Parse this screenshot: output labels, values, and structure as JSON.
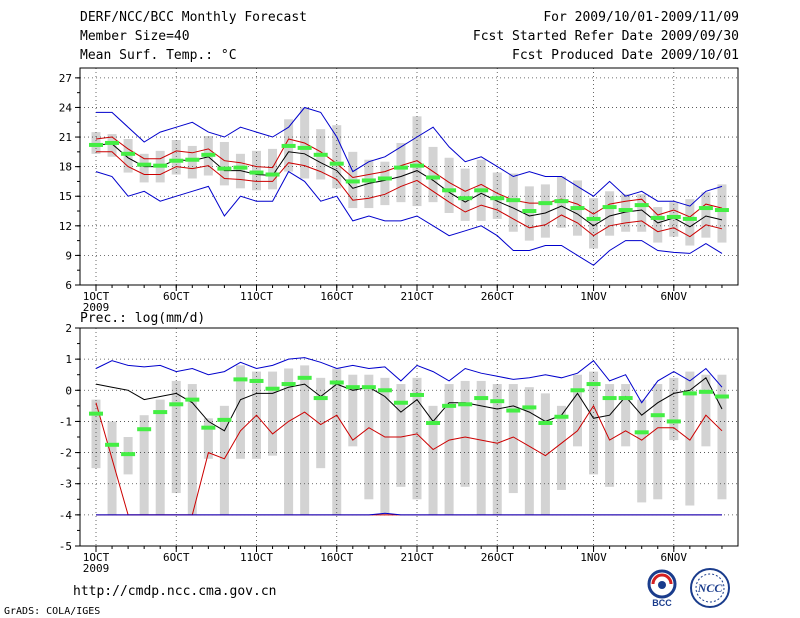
{
  "header": {
    "title": "DERF/NCC/BCC Monthly Forecast",
    "member_size": "Member Size=40",
    "variable": "Mean Surf. Temp.: °C",
    "period": "For 2009/10/01-2009/11/09",
    "started": "Fcst Started Refer Date 2009/09/30",
    "produced": "Fcst Produced Date 2009/10/01"
  },
  "footer": {
    "url": "http://cmdp.ncc.cma.gov.cn",
    "credit": "GrADS: COLA/IGES",
    "logo_bcc_text": "BCC",
    "logo_ncc_text": "NCC"
  },
  "chart_data": [
    {
      "type": "line",
      "name": "temperature",
      "title": "Mean Surf. Temp.: °C",
      "x_tick_labels": [
        "1OCT",
        "6OCT",
        "11OCT",
        "16OCT",
        "21OCT",
        "26OCT",
        "1NOV",
        "6NOV"
      ],
      "x_tick_days": [
        1,
        6,
        11,
        16,
        21,
        26,
        32,
        37
      ],
      "x_sub_label": "2009",
      "ylim": [
        6,
        28
      ],
      "y_ticks": [
        6,
        9,
        12,
        15,
        18,
        21,
        24,
        27
      ],
      "days": [
        1,
        2,
        3,
        4,
        5,
        6,
        7,
        8,
        9,
        10,
        11,
        12,
        13,
        14,
        15,
        16,
        17,
        18,
        19,
        20,
        21,
        22,
        23,
        24,
        25,
        26,
        27,
        28,
        29,
        30,
        31,
        32,
        33,
        34,
        35,
        36,
        37,
        38,
        39,
        40
      ],
      "series": [
        {
          "name": "max",
          "color": "#0000cc",
          "values": [
            23.5,
            23.5,
            22,
            20.5,
            21.5,
            22,
            22.5,
            21.5,
            21,
            22,
            21.5,
            21,
            22,
            24,
            23.5,
            21,
            17.5,
            18.5,
            19,
            20,
            21,
            22,
            20,
            18.5,
            19,
            18,
            17,
            17.5,
            17,
            17,
            16,
            15,
            16.5,
            15,
            15.5,
            14.5,
            14.5,
            14,
            15.5,
            16
          ]
        },
        {
          "name": "p75",
          "color": "#cc0000",
          "values": [
            20.8,
            21,
            19.8,
            18.8,
            18.8,
            19.6,
            19.4,
            19.8,
            18.6,
            18.4,
            18,
            17.9,
            20.8,
            20.4,
            19.5,
            18.3,
            16.9,
            17.2,
            17.5,
            18.1,
            18.6,
            17.5,
            16.4,
            15.5,
            16.2,
            15.3,
            14.6,
            14.3,
            14.3,
            14.7,
            14.2,
            13.2,
            14.2,
            14.5,
            14.7,
            13.1,
            13.6,
            12.9,
            14.2,
            13.8
          ]
        },
        {
          "name": "median",
          "color": "#000000",
          "values": [
            20.2,
            20.3,
            18.9,
            18,
            18,
            18.7,
            18.6,
            19,
            17.6,
            17.6,
            17.2,
            17.1,
            19.5,
            19.3,
            18.4,
            17.6,
            15.8,
            16.3,
            16.6,
            17,
            17.6,
            16.6,
            15.4,
            14.4,
            15.3,
            14.5,
            13.8,
            13,
            13.3,
            14,
            13.2,
            12,
            13,
            13.4,
            13.6,
            12.3,
            12.8,
            11.9,
            13,
            12.6
          ]
        },
        {
          "name": "p25",
          "color": "#cc0000",
          "values": [
            19.5,
            19.5,
            18,
            17.2,
            17.2,
            18,
            17.8,
            18.1,
            16.8,
            16.7,
            16.5,
            16.5,
            18.4,
            18.1,
            17.5,
            16.7,
            14.6,
            14.8,
            15.2,
            16,
            16.6,
            15.5,
            14.4,
            13.4,
            14.1,
            13.6,
            12.7,
            11.8,
            12.1,
            13.1,
            12.3,
            11,
            12,
            12.3,
            12.5,
            11.4,
            11.8,
            10.9,
            12.1,
            11.7
          ]
        },
        {
          "name": "min",
          "color": "#0000cc",
          "values": [
            17.5,
            17,
            15,
            15.5,
            14.5,
            15,
            15.5,
            16,
            13,
            15,
            14.5,
            14.5,
            17.5,
            16.5,
            14.5,
            15,
            12.5,
            13,
            12.5,
            12.5,
            13,
            12,
            11,
            11.5,
            12,
            11,
            9.5,
            9.5,
            10,
            10,
            9,
            8,
            9.5,
            10.5,
            10.5,
            9.5,
            9.3,
            9.2,
            10.2,
            9.2
          ]
        },
        {
          "name": "ensemble-mean",
          "color": "#44ee44",
          "values": [
            20.2,
            20.4,
            19.3,
            18.2,
            18.1,
            18.6,
            18.7,
            19.2,
            17.8,
            17.9,
            17.4,
            17.2,
            20.1,
            19.9,
            19.2,
            18.3,
            16.5,
            16.6,
            16.8,
            17.9,
            18.1,
            16.9,
            15.6,
            14.8,
            15.6,
            14.8,
            14.6,
            13.5,
            14.3,
            14.5,
            13.8,
            12.7,
            13.9,
            13.6,
            14.1,
            12.8,
            12.9,
            12.7,
            13.8,
            13.6
          ]
        }
      ],
      "box_ranges": [
        [
          19.3,
          21.5
        ],
        [
          19,
          21.3
        ],
        [
          17.4,
          20.8
        ],
        [
          16.4,
          19.3
        ],
        [
          16.4,
          19.6
        ],
        [
          17.2,
          20.7
        ],
        [
          16.8,
          20.1
        ],
        [
          17.1,
          21.1
        ],
        [
          16.1,
          20.5
        ],
        [
          15.8,
          19.3
        ],
        [
          15.6,
          19.6
        ],
        [
          15.7,
          19.8
        ],
        [
          17.5,
          22.8
        ],
        [
          16.8,
          24
        ],
        [
          16.7,
          21.8
        ],
        [
          15.8,
          22.2
        ],
        [
          13.8,
          19.5
        ],
        [
          13.8,
          18.7
        ],
        [
          14.1,
          18.5
        ],
        [
          14.4,
          20.4
        ],
        [
          14,
          23.1
        ],
        [
          14.4,
          20
        ],
        [
          13.3,
          18.9
        ],
        [
          12.5,
          17.8
        ],
        [
          12.5,
          18.7
        ],
        [
          12.7,
          17.4
        ],
        [
          11.4,
          17.3
        ],
        [
          10.5,
          16
        ],
        [
          10.8,
          16.2
        ],
        [
          11.8,
          17
        ],
        [
          11,
          16.6
        ],
        [
          9.7,
          14.8
        ],
        [
          11,
          15.5
        ],
        [
          11.4,
          15.2
        ],
        [
          11.4,
          15.2
        ],
        [
          10.3,
          13.9
        ],
        [
          10.9,
          14.4
        ],
        [
          10,
          14.7
        ],
        [
          10.8,
          15.4
        ],
        [
          10.3,
          16.2
        ]
      ]
    },
    {
      "type": "line",
      "name": "precipitation",
      "title": "Prec.: log(mm/d)",
      "x_tick_labels": [
        "1OCT",
        "6OCT",
        "11OCT",
        "16OCT",
        "21OCT",
        "26OCT",
        "1NOV",
        "6NOV"
      ],
      "x_tick_days": [
        1,
        6,
        11,
        16,
        21,
        26,
        32,
        37
      ],
      "x_sub_label": "2009",
      "ylim": [
        -5,
        2
      ],
      "y_ticks": [
        -5,
        -4,
        -3,
        -2,
        -1,
        0,
        1,
        2
      ],
      "days": [
        1,
        2,
        3,
        4,
        5,
        6,
        7,
        8,
        9,
        10,
        11,
        12,
        13,
        14,
        15,
        16,
        17,
        18,
        19,
        20,
        21,
        22,
        23,
        24,
        25,
        26,
        27,
        28,
        29,
        30,
        31,
        32,
        33,
        34,
        35,
        36,
        37,
        38,
        39,
        40
      ],
      "series": [
        {
          "name": "max",
          "color": "#0000cc",
          "values": [
            0.7,
            0.95,
            0.8,
            0.75,
            0.8,
            0.6,
            0.7,
            0.5,
            0.6,
            0.9,
            0.7,
            0.8,
            1,
            1.05,
            0.9,
            0.7,
            0.8,
            0.7,
            0.75,
            0.3,
            0.8,
            0.6,
            0.3,
            0.7,
            0.55,
            0.45,
            0.35,
            0.4,
            0.5,
            0.4,
            0.55,
            0.95,
            0.3,
            0.5,
            -0.4,
            0.3,
            0.6,
            0.3,
            0.7,
            0.1
          ]
        },
        {
          "name": "p75",
          "color": "#000000",
          "values": [
            0.2,
            0.1,
            0,
            -0.3,
            -0.2,
            -0.1,
            -0.4,
            -1,
            -1.3,
            -0.3,
            -0.1,
            -0.1,
            0.1,
            0.2,
            -0.2,
            0.2,
            0,
            0.1,
            -0.2,
            -0.7,
            -0.3,
            -1,
            -0.4,
            -0.4,
            -0.5,
            -0.6,
            -0.5,
            -0.7,
            -1,
            -0.8,
            -0.1,
            -0.9,
            -0.8,
            -0.2,
            -0.8,
            -0.4,
            -0.1,
            0,
            0.4,
            -0.6
          ]
        },
        {
          "name": "median",
          "color": "#cc0000",
          "values": [
            -0.4,
            -2.2,
            -4,
            -4,
            -4,
            -4,
            -4,
            -2,
            -2.2,
            -1.3,
            -0.8,
            -1.4,
            -1,
            -0.7,
            -1.1,
            -0.8,
            -1.6,
            -1.2,
            -1.5,
            -1.5,
            -1.4,
            -1.9,
            -1.6,
            -1.5,
            -1.6,
            -1.7,
            -1.5,
            -1.8,
            -2.1,
            -1.7,
            -1.3,
            -0.5,
            -1.6,
            -1.3,
            -1.6,
            -1.2,
            -1.2,
            -1.6,
            -0.8,
            -1.3
          ]
        },
        {
          "name": "p25",
          "color": "#cc0000",
          "values": [
            -4,
            -4,
            -4,
            -4,
            -4,
            -4,
            -4,
            -4,
            -4,
            -4,
            -4,
            -4,
            -4,
            -4,
            -4,
            -4,
            -4,
            -4,
            -4,
            -4,
            -4,
            -4,
            -4,
            -4,
            -4,
            -4,
            -4,
            -4,
            -4,
            -4,
            -4,
            -4,
            -4,
            -4,
            -4,
            -4,
            -4,
            -4,
            -4,
            -4
          ]
        },
        {
          "name": "min",
          "color": "#0000cc",
          "values": [
            -4,
            -4,
            -4,
            -4,
            -4,
            -4,
            -4,
            -4,
            -4,
            -4,
            -4,
            -4,
            -4,
            -4,
            -4,
            -4,
            -4,
            -4,
            -3.95,
            -4,
            -4,
            -4,
            -4,
            -4,
            -4,
            -4,
            -4,
            -4,
            -4,
            -4,
            -4,
            -4,
            -4,
            -4,
            -4,
            -4,
            -4,
            -4,
            -4,
            -4
          ]
        },
        {
          "name": "ensemble-mean",
          "color": "#44ee44",
          "values": [
            -0.75,
            -1.75,
            -2.05,
            -1.25,
            -0.7,
            -0.45,
            -0.3,
            -1.2,
            -0.95,
            0.35,
            0.3,
            0.05,
            0.2,
            0.4,
            -0.25,
            0.25,
            0.1,
            0.1,
            0,
            -0.4,
            -0.15,
            -1.05,
            -0.5,
            -0.45,
            -0.25,
            -0.35,
            -0.65,
            -0.55,
            -1.05,
            -0.85,
            0,
            0.2,
            -0.25,
            -0.25,
            -1.35,
            -0.8,
            -1,
            -0.1,
            -0.05,
            -0.2
          ]
        }
      ],
      "box_ranges": [
        [
          -2.5,
          -0.3
        ],
        [
          -4,
          -1
        ],
        [
          -2.7,
          -1.5
        ],
        [
          -4,
          -0.8
        ],
        [
          -4,
          -0.3
        ],
        [
          -3.3,
          0.3
        ],
        [
          -4,
          0.2
        ],
        [
          -2.2,
          -0.9
        ],
        [
          -4,
          -0.5
        ],
        [
          -2.2,
          0.8
        ],
        [
          -2.2,
          0.6
        ],
        [
          -2.1,
          0.6
        ],
        [
          -4,
          0.7
        ],
        [
          -4,
          0.8
        ],
        [
          -2.5,
          0.4
        ],
        [
          -4,
          0.7
        ],
        [
          -1.8,
          0.5
        ],
        [
          -3.5,
          0.5
        ],
        [
          -4,
          0.4
        ],
        [
          -3.1,
          0.2
        ],
        [
          -3.5,
          0.4
        ],
        [
          -4,
          -0.5
        ],
        [
          -4,
          0.2
        ],
        [
          -3.1,
          0.3
        ],
        [
          -4,
          0.3
        ],
        [
          -4,
          0.2
        ],
        [
          -3.3,
          0.2
        ],
        [
          -4,
          0.1
        ],
        [
          -4,
          -0.1
        ],
        [
          -3.2,
          -0.5
        ],
        [
          -1.8,
          0.5
        ],
        [
          -2.7,
          0.6
        ],
        [
          -3.1,
          0.2
        ],
        [
          -1.8,
          0.2
        ],
        [
          -3.6,
          -0.3
        ],
        [
          -3.5,
          0.2
        ],
        [
          -1.6,
          0.4
        ],
        [
          -3.7,
          0.6
        ],
        [
          -1.8,
          0.5
        ],
        [
          -3.5,
          0.5
        ]
      ]
    }
  ]
}
